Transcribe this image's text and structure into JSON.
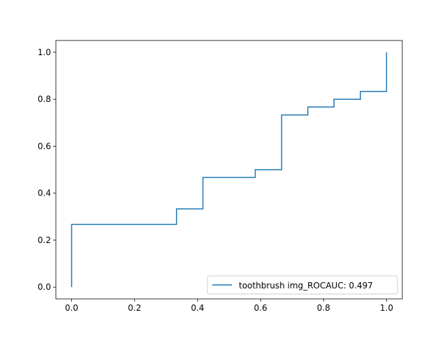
{
  "chart_data": {
    "type": "line",
    "drawstyle": "steps-post",
    "title": "",
    "xlabel": "",
    "ylabel": "",
    "xlim": [
      -0.05,
      1.05
    ],
    "ylim": [
      -0.05,
      1.05
    ],
    "xticks": [
      0.0,
      0.2,
      0.4,
      0.6,
      0.8,
      1.0
    ],
    "xtick_labels": [
      "0.0",
      "0.2",
      "0.4",
      "0.6",
      "0.8",
      "1.0"
    ],
    "yticks": [
      0.0,
      0.2,
      0.4,
      0.6,
      0.8,
      1.0
    ],
    "ytick_labels": [
      "0.0",
      "0.2",
      "0.4",
      "0.6",
      "0.8",
      "1.0"
    ],
    "grid": false,
    "legend_position": "lower-right",
    "series": [
      {
        "name": "toothbrush img_ROCAUC: 0.497",
        "color": "#1f77b4",
        "x": [
          0.0,
          0.0,
          0.0,
          0.333,
          0.333,
          0.417,
          0.417,
          0.583,
          0.583,
          0.667,
          0.667,
          0.75,
          0.75,
          0.833,
          0.833,
          0.917,
          0.917,
          1.0,
          1.0
        ],
        "y": [
          0.0,
          0.267,
          0.267,
          0.267,
          0.333,
          0.333,
          0.467,
          0.467,
          0.5,
          0.5,
          0.733,
          0.733,
          0.767,
          0.767,
          0.8,
          0.8,
          0.833,
          0.833,
          1.0
        ]
      }
    ]
  }
}
